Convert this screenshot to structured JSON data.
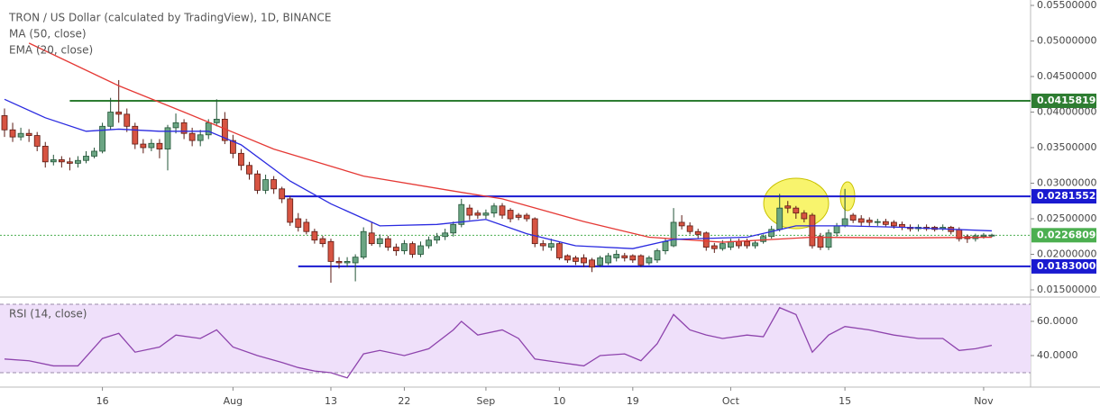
{
  "chart_data": {
    "type": "candlestick",
    "title": "TRON / US Dollar (calculated by TradingView), 1D, BINANCE",
    "categories": [
      null,
      null,
      null,
      null,
      null,
      null,
      null,
      null,
      null,
      null,
      null,
      null,
      "16",
      null,
      null,
      null,
      null,
      null,
      null,
      null,
      null,
      null,
      null,
      null,
      null,
      null,
      null,
      null,
      "Aug",
      null,
      null,
      null,
      null,
      null,
      null,
      null,
      null,
      null,
      null,
      null,
      "13",
      null,
      null,
      null,
      null,
      null,
      null,
      null,
      null,
      "22",
      null,
      null,
      null,
      null,
      null,
      null,
      null,
      null,
      null,
      "Sep",
      null,
      null,
      null,
      null,
      null,
      null,
      null,
      null,
      "10",
      null,
      null,
      null,
      null,
      null,
      null,
      null,
      null,
      "19",
      null,
      null,
      null,
      null,
      null,
      null,
      null,
      null,
      null,
      null,
      null,
      "Oct",
      null,
      null,
      null,
      null,
      null,
      null,
      null,
      null,
      null,
      null,
      null,
      null,
      null,
      "15",
      null,
      null,
      null,
      null,
      null,
      null,
      null,
      null,
      null,
      null,
      null,
      null,
      null,
      null,
      null,
      null,
      "Nov",
      null
    ],
    "open": [
      0.0395,
      0.0375,
      0.0365,
      0.037,
      0.0367,
      0.0352,
      0.033,
      0.0333,
      0.033,
      0.0328,
      0.0332,
      0.0338,
      0.0345,
      0.038,
      0.04,
      0.0397,
      0.038,
      0.0355,
      0.035,
      0.0356,
      0.0348,
      0.0378,
      0.0385,
      0.037,
      0.036,
      0.0368,
      0.0385,
      0.039,
      0.036,
      0.0342,
      0.0325,
      0.0313,
      0.029,
      0.0305,
      0.0292,
      0.0278,
      0.025,
      0.0245,
      0.0232,
      0.0222,
      0.0218,
      0.019,
      0.0188,
      0.0188,
      0.0196,
      0.023,
      0.0215,
      0.0222,
      0.021,
      0.0205,
      0.0215,
      0.02,
      0.0212,
      0.022,
      0.0225,
      0.023,
      0.0242,
      0.0265,
      0.0258,
      0.0255,
      0.0258,
      0.0268,
      0.0262,
      0.0255,
      0.0255,
      0.025,
      0.0215,
      0.021,
      0.0215,
      0.0198,
      0.0195,
      0.0195,
      0.0192,
      0.0185,
      0.0188,
      0.0195,
      0.0198,
      0.0198,
      0.0198,
      0.0188,
      0.0192,
      0.0205,
      0.0212,
      0.0245,
      0.024,
      0.0232,
      0.023,
      0.0212,
      0.0208,
      0.021,
      0.0218,
      0.0218,
      0.0212,
      0.0218,
      0.0225,
      0.0235,
      0.0268,
      0.0265,
      0.0258,
      0.0255,
      0.0225,
      0.021,
      0.023,
      0.024,
      0.0255,
      0.025,
      0.0248,
      0.0245,
      0.0246,
      0.0245,
      0.0242,
      0.0238,
      0.0236,
      0.0238,
      0.0238,
      0.0236,
      0.0238,
      0.0235,
      0.0225,
      0.0222,
      0.0225,
      0.0226
    ],
    "high": [
      0.0405,
      0.0385,
      0.0378,
      0.0376,
      0.0372,
      0.0358,
      0.034,
      0.0338,
      0.0336,
      0.0338,
      0.0345,
      0.035,
      0.0385,
      0.042,
      0.0445,
      0.0405,
      0.0385,
      0.0362,
      0.0362,
      0.0362,
      0.0382,
      0.0398,
      0.039,
      0.0378,
      0.0375,
      0.039,
      0.0418,
      0.04,
      0.0368,
      0.0348,
      0.033,
      0.0318,
      0.0312,
      0.031,
      0.0295,
      0.0282,
      0.0258,
      0.025,
      0.0236,
      0.0226,
      0.0222,
      0.0196,
      0.0196,
      0.02,
      0.0238,
      0.0245,
      0.0228,
      0.0226,
      0.0215,
      0.022,
      0.0218,
      0.0218,
      0.0225,
      0.023,
      0.0236,
      0.0246,
      0.0278,
      0.027,
      0.0262,
      0.0263,
      0.0272,
      0.0272,
      0.0265,
      0.0258,
      0.0258,
      0.0252,
      0.022,
      0.0222,
      0.0218,
      0.02,
      0.0198,
      0.02,
      0.0195,
      0.0198,
      0.0202,
      0.0206,
      0.0202,
      0.02,
      0.02,
      0.0198,
      0.0208,
      0.0222,
      0.0265,
      0.0255,
      0.0245,
      0.0236,
      0.0232,
      0.0216,
      0.022,
      0.0222,
      0.0222,
      0.0222,
      0.022,
      0.0228,
      0.024,
      0.0285,
      0.0275,
      0.0268,
      0.0262,
      0.0258,
      0.023,
      0.0235,
      0.0244,
      0.0292,
      0.0258,
      0.0255,
      0.0252,
      0.025,
      0.025,
      0.0248,
      0.0246,
      0.0242,
      0.0242,
      0.0242,
      0.024,
      0.0242,
      0.024,
      0.0238,
      0.0228,
      0.0229,
      0.023,
      0.0229
    ],
    "low": [
      0.0365,
      0.0358,
      0.036,
      0.0358,
      0.0345,
      0.0322,
      0.0325,
      0.0322,
      0.0318,
      0.0322,
      0.0328,
      0.0335,
      0.0342,
      0.0375,
      0.0385,
      0.0372,
      0.0348,
      0.0342,
      0.0345,
      0.0335,
      0.0318,
      0.037,
      0.0362,
      0.0352,
      0.0352,
      0.0362,
      0.038,
      0.0355,
      0.0335,
      0.0318,
      0.0305,
      0.0285,
      0.0285,
      0.0285,
      0.0272,
      0.024,
      0.0232,
      0.0228,
      0.0215,
      0.021,
      0.016,
      0.018,
      0.0182,
      0.0162,
      0.0193,
      0.0212,
      0.021,
      0.0205,
      0.0198,
      0.02,
      0.0195,
      0.0196,
      0.0208,
      0.0215,
      0.022,
      0.0225,
      0.0238,
      0.0248,
      0.025,
      0.025,
      0.0252,
      0.025,
      0.0245,
      0.0248,
      0.0246,
      0.021,
      0.0205,
      0.0205,
      0.0192,
      0.0188,
      0.0185,
      0.0182,
      0.0175,
      0.0182,
      0.0185,
      0.019,
      0.019,
      0.0188,
      0.0182,
      0.0185,
      0.0188,
      0.02,
      0.021,
      0.0235,
      0.0228,
      0.0222,
      0.0205,
      0.0202,
      0.0205,
      0.0206,
      0.0208,
      0.0208,
      0.0208,
      0.0215,
      0.0222,
      0.0232,
      0.0258,
      0.025,
      0.0245,
      0.0208,
      0.0206,
      0.0206,
      0.0225,
      0.0238,
      0.0244,
      0.024,
      0.024,
      0.024,
      0.0238,
      0.0236,
      0.0234,
      0.0232,
      0.0232,
      0.0233,
      0.0232,
      0.0233,
      0.0228,
      0.0218,
      0.0216,
      0.0218,
      0.0222,
      0.0224
    ],
    "close": [
      0.0375,
      0.0365,
      0.037,
      0.0367,
      0.0352,
      0.033,
      0.0333,
      0.033,
      0.0328,
      0.0332,
      0.0338,
      0.0345,
      0.038,
      0.04,
      0.0397,
      0.038,
      0.0355,
      0.035,
      0.0356,
      0.0348,
      0.0378,
      0.0385,
      0.037,
      0.036,
      0.0368,
      0.0385,
      0.039,
      0.036,
      0.0342,
      0.0325,
      0.0313,
      0.029,
      0.0305,
      0.0292,
      0.0278,
      0.0245,
      0.0238,
      0.0232,
      0.022,
      0.0215,
      0.019,
      0.0188,
      0.019,
      0.0196,
      0.0232,
      0.0215,
      0.0222,
      0.021,
      0.0205,
      0.0215,
      0.02,
      0.0212,
      0.022,
      0.0225,
      0.023,
      0.0242,
      0.027,
      0.0255,
      0.0255,
      0.0258,
      0.0268,
      0.0255,
      0.025,
      0.0252,
      0.025,
      0.0215,
      0.0212,
      0.0215,
      0.0195,
      0.0192,
      0.019,
      0.0188,
      0.0182,
      0.0195,
      0.0198,
      0.02,
      0.0195,
      0.0192,
      0.0185,
      0.0195,
      0.0205,
      0.0218,
      0.0245,
      0.024,
      0.0232,
      0.0228,
      0.021,
      0.0208,
      0.0215,
      0.0218,
      0.0212,
      0.0212,
      0.0216,
      0.0225,
      0.0235,
      0.0265,
      0.0265,
      0.0258,
      0.025,
      0.0212,
      0.021,
      0.023,
      0.024,
      0.025,
      0.0248,
      0.0245,
      0.0245,
      0.0246,
      0.0242,
      0.024,
      0.0238,
      0.0236,
      0.0238,
      0.0236,
      0.0235,
      0.0238,
      0.0232,
      0.0222,
      0.0222,
      0.0226,
      0.0227,
      0.0227
    ],
    "up_color": "#6ba583",
    "up_border": "#225437",
    "down_color": "#d75442",
    "down_border": "#5b1a13",
    "ylim": [
      0.01424,
      0.05576
    ],
    "yticks": [
      {
        "value": 0.015,
        "label": "0.01500000"
      },
      {
        "value": 0.02,
        "label": "0.02000000"
      },
      {
        "value": 0.025,
        "label": "0.02500000"
      },
      {
        "value": 0.03,
        "label": "0.03000000"
      },
      {
        "value": 0.035,
        "label": "0.03500000"
      },
      {
        "value": 0.04,
        "label": "0.04000000"
      },
      {
        "value": 0.045,
        "label": "0.04500000"
      },
      {
        "value": 0.05,
        "label": "0.05000000"
      },
      {
        "value": 0.055,
        "label": "0.05500000"
      }
    ],
    "lines": [
      {
        "name": "MA (50, close)",
        "color": "#e53935",
        "x": [
          3,
          14,
          22,
          33,
          44,
          55,
          61,
          71,
          79,
          88,
          99,
          110,
          121
        ],
        "values": [
          0.0497,
          0.0437,
          0.04,
          0.0348,
          0.031,
          0.0289,
          0.0278,
          0.0246,
          0.0224,
          0.0217,
          0.0224,
          0.0223,
          0.0224
        ]
      },
      {
        "name": "EMA (20, close)",
        "color": "#2a2ae0",
        "x": [
          0,
          5,
          10,
          14,
          19,
          25,
          29,
          35,
          40,
          46,
          53,
          59,
          64,
          70,
          77,
          82,
          91,
          97,
          103,
          110,
          121
        ],
        "values": [
          0.0418,
          0.0392,
          0.0373,
          0.0376,
          0.0373,
          0.0373,
          0.0354,
          0.0303,
          0.0271,
          0.024,
          0.0242,
          0.0249,
          0.0229,
          0.0212,
          0.0208,
          0.0221,
          0.0224,
          0.024,
          0.024,
          0.0238,
          0.0233
        ]
      }
    ],
    "price_lines": [
      {
        "value": 0.04158193,
        "label": "0.04158193",
        "color": "#2e7d32",
        "start": 8
      },
      {
        "value": 0.02815521,
        "label": "0.02815521",
        "color": "#1a1ad0",
        "start": 34
      },
      {
        "value": 0.0183,
        "label": "0.01830000",
        "color": "#1a1ad0",
        "start": 36
      }
    ],
    "last_price": {
      "value": 0.02268096,
      "label": "0.02268096",
      "color": "#4caf50"
    },
    "rsi": {
      "name": "RSI (14, close)",
      "color": "#8e44ad",
      "band": [
        30,
        70
      ],
      "band_color": "#efe0fa",
      "ylim": [
        21.6,
        72.6
      ],
      "yticks": [
        {
          "value": 40,
          "label": "40.0000"
        },
        {
          "value": 60,
          "label": "60.0000"
        }
      ],
      "x": [
        0,
        3,
        6,
        9,
        12,
        14,
        16,
        19,
        21,
        24,
        26,
        28,
        31,
        34,
        36,
        38,
        40,
        42,
        44,
        46,
        49,
        52,
        55,
        56,
        58,
        61,
        63,
        65,
        68,
        71,
        73,
        76,
        78,
        80,
        82,
        84,
        86,
        88,
        91,
        93,
        95,
        97,
        99,
        101,
        103,
        106,
        109,
        112,
        115,
        117,
        119,
        121
      ],
      "values": [
        38,
        37,
        34,
        34,
        50,
        53,
        42,
        45,
        52,
        50,
        55,
        45,
        40,
        36,
        33,
        31,
        30,
        27,
        41,
        43,
        40,
        44,
        55,
        60,
        52,
        55,
        50,
        38,
        36,
        34,
        40,
        41,
        37,
        47,
        64,
        55,
        52,
        50,
        52,
        51,
        68,
        64,
        42,
        52,
        57,
        55,
        52,
        50,
        50,
        43,
        44,
        46
      ]
    }
  }
}
